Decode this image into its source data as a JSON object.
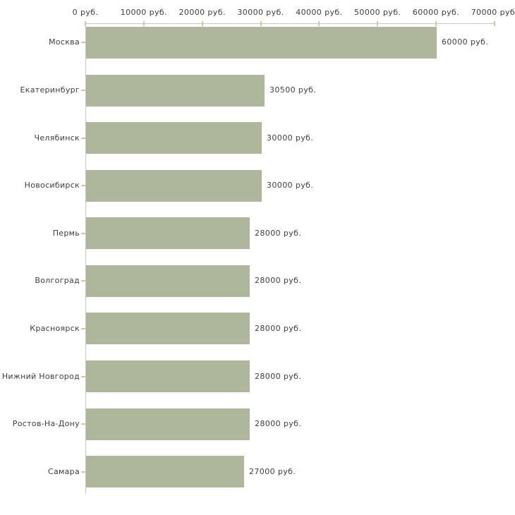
{
  "chart_data": {
    "type": "bar",
    "orientation": "horizontal",
    "title": "",
    "xlabel": "",
    "ylabel": "",
    "grid": false,
    "legend": false,
    "categories": [
      "Москва",
      "Екатеринбург",
      "Челябинск",
      "Новосибирск",
      "Пермь",
      "Волгоград",
      "Красноярск",
      "Нижний Новгород",
      "Ростов-На-Дону",
      "Самара"
    ],
    "values": [
      60000,
      30500,
      30000,
      30000,
      28000,
      28000,
      28000,
      28000,
      28000,
      27000
    ],
    "value_labels": [
      "60000 руб.",
      "30500 руб.",
      "30000 руб.",
      "30000 руб.",
      "28000 руб.",
      "28000 руб.",
      "28000 руб.",
      "28000 руб.",
      "28000 руб.",
      "27000 руб."
    ],
    "x_axis": {
      "position": "top",
      "xlim": [
        0,
        70000
      ],
      "tick_values": [
        0,
        10000,
        20000,
        30000,
        40000,
        50000,
        60000,
        70000
      ],
      "tick_labels": [
        "0 руб.",
        "10000 руб.",
        "20000 руб.",
        "30000 руб.",
        "40000 руб.",
        "50000 руб.",
        "60000 руб.",
        "70000 руб."
      ],
      "unit": "руб."
    },
    "colors": {
      "bar": "#aeb69b",
      "axis_line": "#c5c5c5",
      "tick_mark": "#c9c9a3",
      "text": "#3c3c3c",
      "background": "#ffffff"
    }
  }
}
